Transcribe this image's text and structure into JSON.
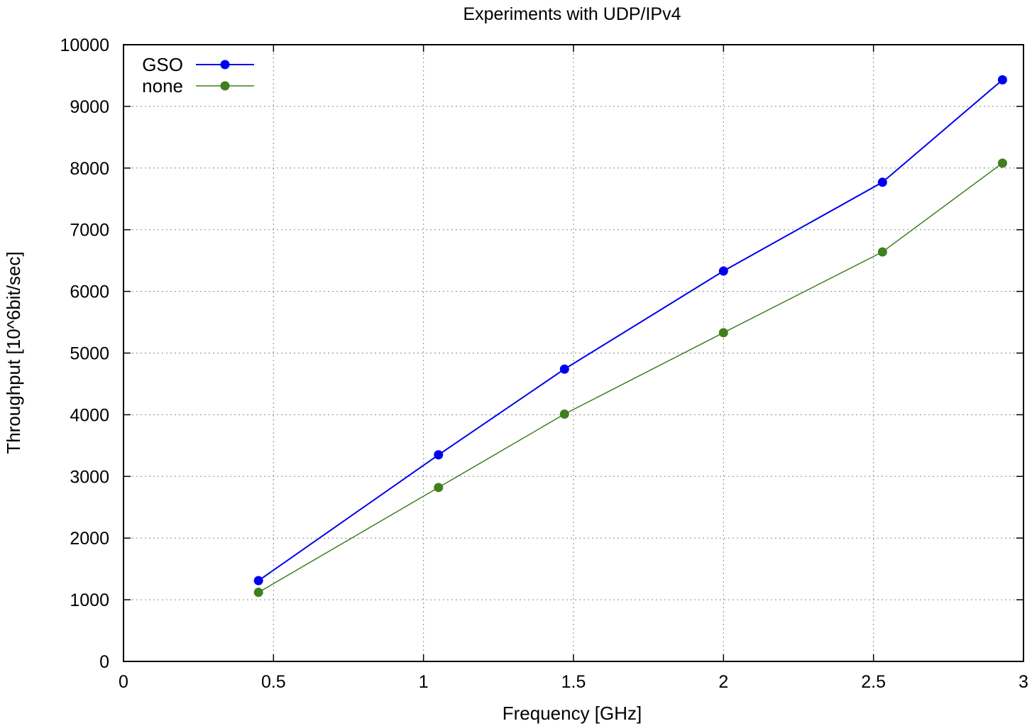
{
  "chart_data": {
    "type": "line",
    "title": "Experiments with UDP/IPv4",
    "xlabel": "Frequency [GHz]",
    "ylabel": "Throughput [10^6bit/sec]",
    "xlim": [
      0,
      3
    ],
    "ylim": [
      0,
      10000
    ],
    "xticks": [
      0,
      0.5,
      1,
      1.5,
      2,
      2.5,
      3
    ],
    "xtick_labels": [
      "0",
      "0.5",
      "1",
      "1.5",
      "2",
      "2.5",
      "3"
    ],
    "yticks": [
      0,
      1000,
      2000,
      3000,
      4000,
      5000,
      6000,
      7000,
      8000,
      9000,
      10000
    ],
    "ytick_labels": [
      "0",
      "1000",
      "2000",
      "3000",
      "4000",
      "5000",
      "6000",
      "7000",
      "8000",
      "9000",
      "10000"
    ],
    "grid": true,
    "legend_position": "top-left",
    "series": [
      {
        "name": "GSO",
        "color": "#0000ee",
        "x": [
          0.45,
          1.05,
          1.47,
          2.0,
          2.53,
          2.93
        ],
        "values": [
          1310,
          3350,
          4740,
          6330,
          7770,
          9430
        ]
      },
      {
        "name": "none",
        "color": "#3f7f1f",
        "x": [
          0.45,
          1.05,
          1.47,
          2.0,
          2.53,
          2.93
        ],
        "values": [
          1120,
          2820,
          4010,
          5330,
          6640,
          8080
        ]
      }
    ]
  }
}
